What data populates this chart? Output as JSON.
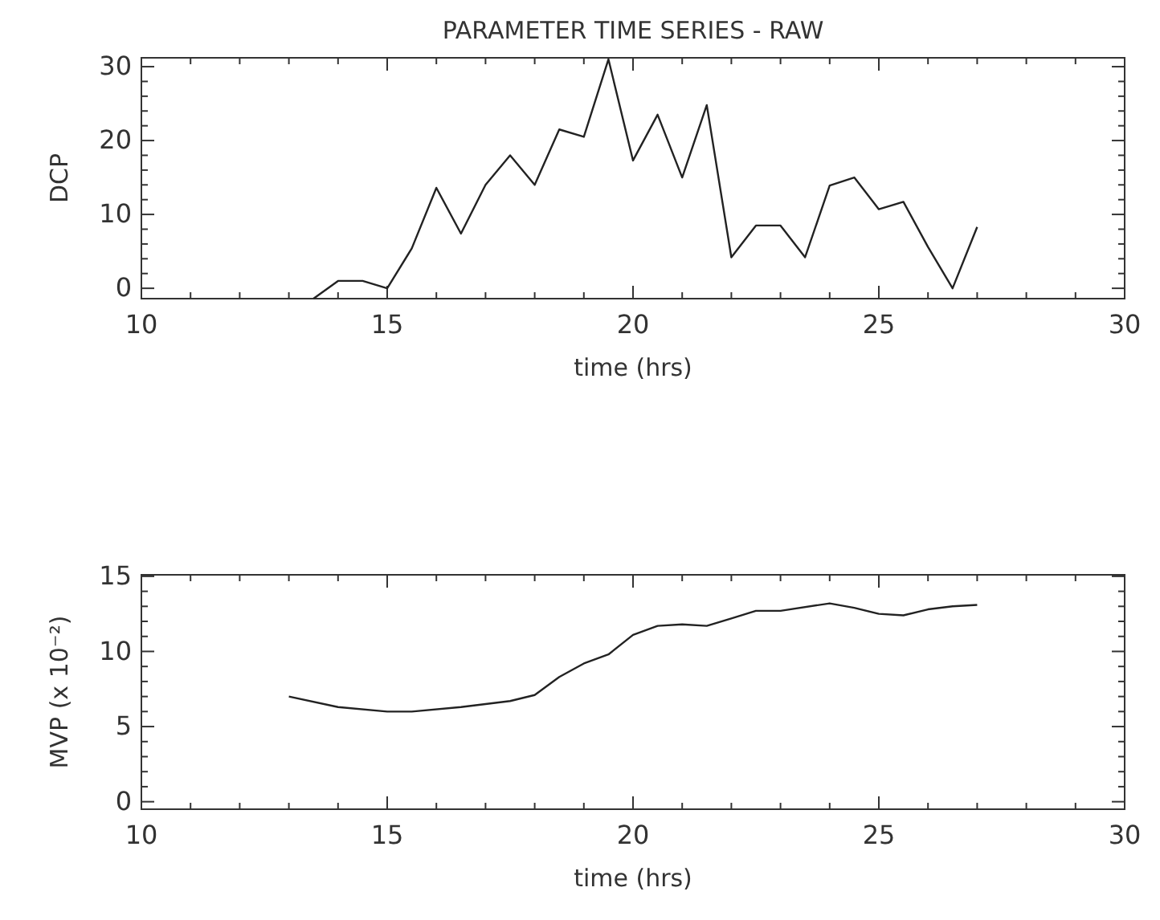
{
  "chart_data": [
    {
      "type": "line",
      "title": "PARAMETER TIME SERIES - RAW",
      "xlabel": "time (hrs)",
      "ylabel": "DCP",
      "x": [
        13.5,
        14,
        14.5,
        15,
        15.5,
        16,
        16.5,
        17,
        17.5,
        18,
        18.5,
        19,
        19.5,
        20,
        20.5,
        21,
        21.5,
        22,
        22.5,
        23,
        23.5,
        24,
        24.5,
        25,
        25.5,
        26,
        26.5,
        27
      ],
      "series": [
        {
          "color": "#222222",
          "values": [
            -1.4,
            1,
            1,
            0,
            5.4,
            13.6,
            7.4,
            14,
            18,
            14,
            21.5,
            20.5,
            31,
            17.3,
            23.5,
            15,
            24.8,
            4.2,
            8.5,
            8.5,
            4.2,
            13.9,
            15,
            10.7,
            11.7,
            5.6,
            0,
            8.3
          ]
        }
      ],
      "xlim": [
        10,
        30
      ],
      "ylim": [
        -1.4,
        31.2
      ],
      "xticks": [
        10,
        {
          "value": 11,
          "label": null
        },
        {
          "value": 12,
          "label": null
        },
        {
          "value": 13,
          "label": null
        },
        {
          "value": 14,
          "label": null
        },
        15,
        {
          "value": 16,
          "label": null
        },
        {
          "value": 17,
          "label": null
        },
        {
          "value": 18,
          "label": null
        },
        {
          "value": 19,
          "label": null
        },
        20,
        {
          "value": 21,
          "label": null
        },
        {
          "value": 22,
          "label": null
        },
        {
          "value": 23,
          "label": null
        },
        {
          "value": 24,
          "label": null
        },
        25,
        {
          "value": 26,
          "label": null
        },
        {
          "value": 27,
          "label": null
        },
        {
          "value": 28,
          "label": null
        },
        {
          "value": 29,
          "label": null
        },
        30
      ],
      "yticks": [
        0,
        {
          "value": 2,
          "label": null
        },
        {
          "value": 4,
          "label": null
        },
        {
          "value": 6,
          "label": null
        },
        {
          "value": 8,
          "label": null
        },
        10,
        {
          "value": 12,
          "label": null
        },
        {
          "value": 14,
          "label": null
        },
        {
          "value": 16,
          "label": null
        },
        {
          "value": 18,
          "label": null
        },
        20,
        {
          "value": 22,
          "label": null
        },
        {
          "value": 24,
          "label": null
        },
        {
          "value": 26,
          "label": null
        },
        {
          "value": 28,
          "label": null
        },
        30
      ],
      "grid": false,
      "marker": "none",
      "line_style": "solid"
    },
    {
      "type": "line",
      "xlabel": "time (hrs)",
      "ylabel": "MVP (x 10⁻²)",
      "x": [
        13,
        14,
        15,
        15.5,
        16.5,
        17.5,
        18,
        18.5,
        19,
        19.5,
        20,
        20.5,
        21,
        21.5,
        22,
        22.5,
        23,
        24,
        24.5,
        25,
        25.5,
        26,
        26.5,
        27
      ],
      "series": [
        {
          "color": "#222222",
          "values": [
            7.0,
            6.3,
            6.0,
            6.0,
            6.3,
            6.7,
            7.1,
            8.3,
            9.2,
            9.8,
            11.1,
            11.7,
            11.8,
            11.7,
            12.2,
            12.7,
            12.7,
            13.2,
            12.9,
            12.5,
            12.4,
            12.8,
            13.0,
            13.1
          ]
        }
      ],
      "xlim": [
        10,
        30
      ],
      "ylim": [
        -0.5,
        15.1
      ],
      "xticks": [
        10,
        {
          "value": 11,
          "label": null
        },
        {
          "value": 12,
          "label": null
        },
        {
          "value": 13,
          "label": null
        },
        {
          "value": 14,
          "label": null
        },
        15,
        {
          "value": 16,
          "label": null
        },
        {
          "value": 17,
          "label": null
        },
        {
          "value": 18,
          "label": null
        },
        {
          "value": 19,
          "label": null
        },
        20,
        {
          "value": 21,
          "label": null
        },
        {
          "value": 22,
          "label": null
        },
        {
          "value": 23,
          "label": null
        },
        {
          "value": 24,
          "label": null
        },
        25,
        {
          "value": 26,
          "label": null
        },
        {
          "value": 27,
          "label": null
        },
        {
          "value": 28,
          "label": null
        },
        {
          "value": 29,
          "label": null
        },
        30
      ],
      "yticks": [
        0,
        {
          "value": 1,
          "label": null
        },
        {
          "value": 2,
          "label": null
        },
        {
          "value": 3,
          "label": null
        },
        {
          "value": 4,
          "label": null
        },
        5,
        {
          "value": 6,
          "label": null
        },
        {
          "value": 7,
          "label": null
        },
        {
          "value": 8,
          "label": null
        },
        {
          "value": 9,
          "label": null
        },
        10,
        {
          "value": 11,
          "label": null
        },
        {
          "value": 12,
          "label": null
        },
        {
          "value": 13,
          "label": null
        },
        {
          "value": 14,
          "label": null
        },
        15
      ],
      "grid": false,
      "marker": "none",
      "line_style": "solid"
    }
  ]
}
